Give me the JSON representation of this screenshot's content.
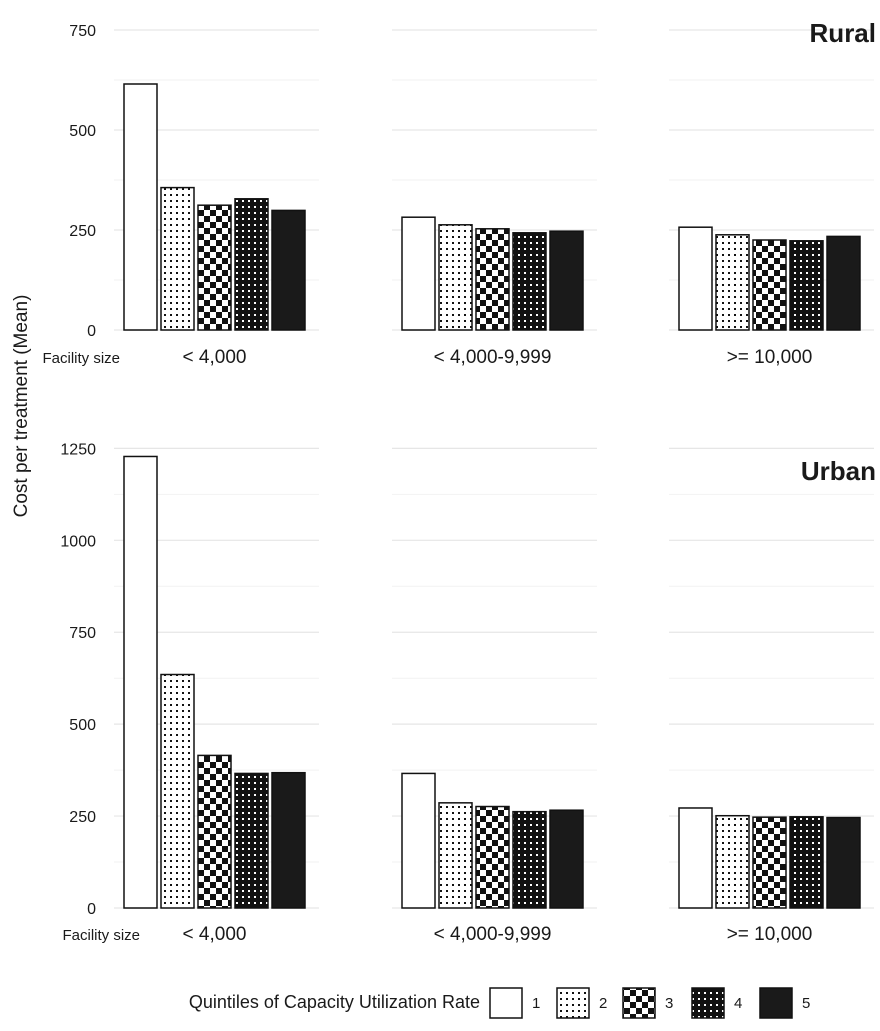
{
  "chart_data": {
    "type": "bar",
    "ylabel": "Cost per treatment (Mean)",
    "facility_size_label": "Facility size",
    "categories": [
      "< 4,000",
      "< 4,000-9,999",
      ">= 10,000"
    ],
    "legend": {
      "title": "Quintiles of Capacity Utilization Rate",
      "placement": "bottom",
      "entries": [
        "1",
        "2",
        "3",
        "4",
        "5"
      ]
    },
    "grid": true,
    "panels": [
      {
        "title": "Rural",
        "ylim": [
          0,
          800
        ],
        "yticks": [
          "0",
          "250",
          "500",
          "750"
        ],
        "series": [
          {
            "name": "1",
            "values": [
              615,
              282,
              257
            ]
          },
          {
            "name": "2",
            "values": [
              356,
              263,
              238
            ]
          },
          {
            "name": "3",
            "values": [
              312,
              253,
              225
            ]
          },
          {
            "name": "4",
            "values": [
              328,
              243,
              223
            ]
          },
          {
            "name": "5",
            "values": [
              299,
              247,
              234
            ]
          }
        ]
      },
      {
        "title": "Urban",
        "ylim": [
          0,
          1300
        ],
        "yticks": [
          "0",
          "250",
          "500",
          "750",
          "1000",
          "1250"
        ],
        "series": [
          {
            "name": "1",
            "values": [
              1228,
              366,
              272
            ]
          },
          {
            "name": "2",
            "values": [
              635,
              286,
              251
            ]
          },
          {
            "name": "3",
            "values": [
              415,
              276,
              247
            ]
          },
          {
            "name": "4",
            "values": [
              366,
              262,
              248
            ]
          },
          {
            "name": "5",
            "values": [
              368,
              266,
              246
            ]
          }
        ]
      }
    ]
  }
}
